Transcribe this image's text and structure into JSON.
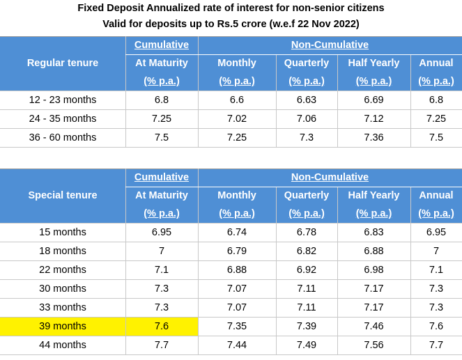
{
  "title_line1": "Fixed Deposit Annualized rate of interest for non-senior citizens",
  "title_line2": "Valid for deposits up to Rs.5 crore (w.e.f 22 Nov 2022)",
  "header": {
    "cumulative": "Cumulative",
    "non_cumulative": "Non-Cumulative",
    "at_maturity": "At Maturity",
    "monthly": "Monthly",
    "quarterly": "Quarterly",
    "half_yearly": "Half Yearly",
    "annual": "Annual",
    "pa": "(% p.a.)"
  },
  "regular": {
    "label": "Regular tenure",
    "rows": [
      [
        "12 - 23 months",
        "6.8",
        "6.6",
        "6.63",
        "6.69",
        "6.8"
      ],
      [
        "24 - 35 months",
        "7.25",
        "7.02",
        "7.06",
        "7.12",
        "7.25"
      ],
      [
        "36 - 60 months",
        "7.5",
        "7.25",
        "7.3",
        "7.36",
        "7.5"
      ]
    ]
  },
  "special": {
    "label": "Special tenure",
    "highlighted_row": 5,
    "highlight_color": "#fff200",
    "rows": [
      [
        "15 months",
        "6.95",
        "6.74",
        "6.78",
        "6.83",
        "6.95"
      ],
      [
        "18 months",
        "7",
        "6.79",
        "6.82",
        "6.88",
        "7"
      ],
      [
        "22 months",
        "7.1",
        "6.88",
        "6.92",
        "6.98",
        "7.1"
      ],
      [
        "30 months",
        "7.3",
        "7.07",
        "7.11",
        "7.17",
        "7.3"
      ],
      [
        "33 months",
        "7.3",
        "7.07",
        "7.11",
        "7.17",
        "7.3"
      ],
      [
        "39 months",
        "7.6",
        "7.35",
        "7.39",
        "7.46",
        "7.6"
      ],
      [
        "44 months",
        "7.7",
        "7.44",
        "7.49",
        "7.56",
        "7.7"
      ]
    ]
  },
  "colors": {
    "header_bg": "#4f8fd5",
    "header_text": "#ffffff"
  }
}
